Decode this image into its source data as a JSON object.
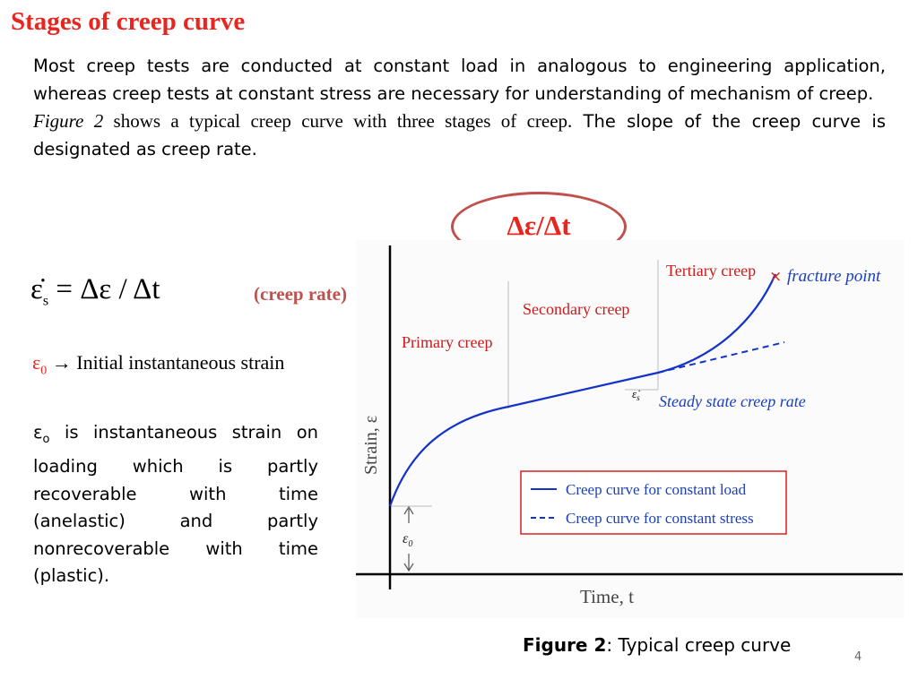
{
  "slide": {
    "title": "Stages of creep curve",
    "intro_line1": "Most creep tests are conducted at constant load in analogous to engineering application, whereas creep tests at constant stress are necessary for understanding of mechanism of creep.",
    "intro_fig_ref": "Figure 2",
    "intro_fig_text": " shows a typical creep curve with three stages of creep.",
    "intro_line2_rest": " The slope of the creep curve is designated as creep rate.",
    "rate_oval_text": "Δε/Δt",
    "equation_lhs_symbol": "ε̇",
    "equation_lhs_sub": "s",
    "equation_rhs": " = Δε / Δt",
    "equation_note": "(creep rate)",
    "eps0_symbol": "ε",
    "eps0_sub": "0",
    "eps0_text": " → Initial instantaneous strain",
    "desc_symbol": "ε",
    "desc_sub": "o",
    "desc_text": " is instantaneous strain on loading which is partly recoverable with time (anelastic) and partly nonrecoverable with time (plastic).",
    "caption_bold": "Figure 2",
    "caption_text": ": Typical creep curve",
    "page_number": "4"
  },
  "figure": {
    "xlabel": "Time, t",
    "ylabel": "Strain, ε",
    "stage_primary": "Primary creep",
    "stage_secondary": "Secondary creep",
    "stage_tertiary": "Tertiary creep",
    "fracture_mark": "×",
    "fracture_label": "fracture point",
    "slope_symbol": "ε̇",
    "slope_sub": "s",
    "steady_label": "Steady state creep rate",
    "eps0_label": "ε",
    "eps0_sub": "0",
    "legend_load": "Creep curve for constant load",
    "legend_stress": "Creep curve for constant stress",
    "colors": {
      "curve": "#1433c9",
      "label_red": "#cc1b1b",
      "label_blue": "#1a3fbf",
      "guide": "#bbbbbb",
      "legend_border": "#d92020"
    }
  }
}
